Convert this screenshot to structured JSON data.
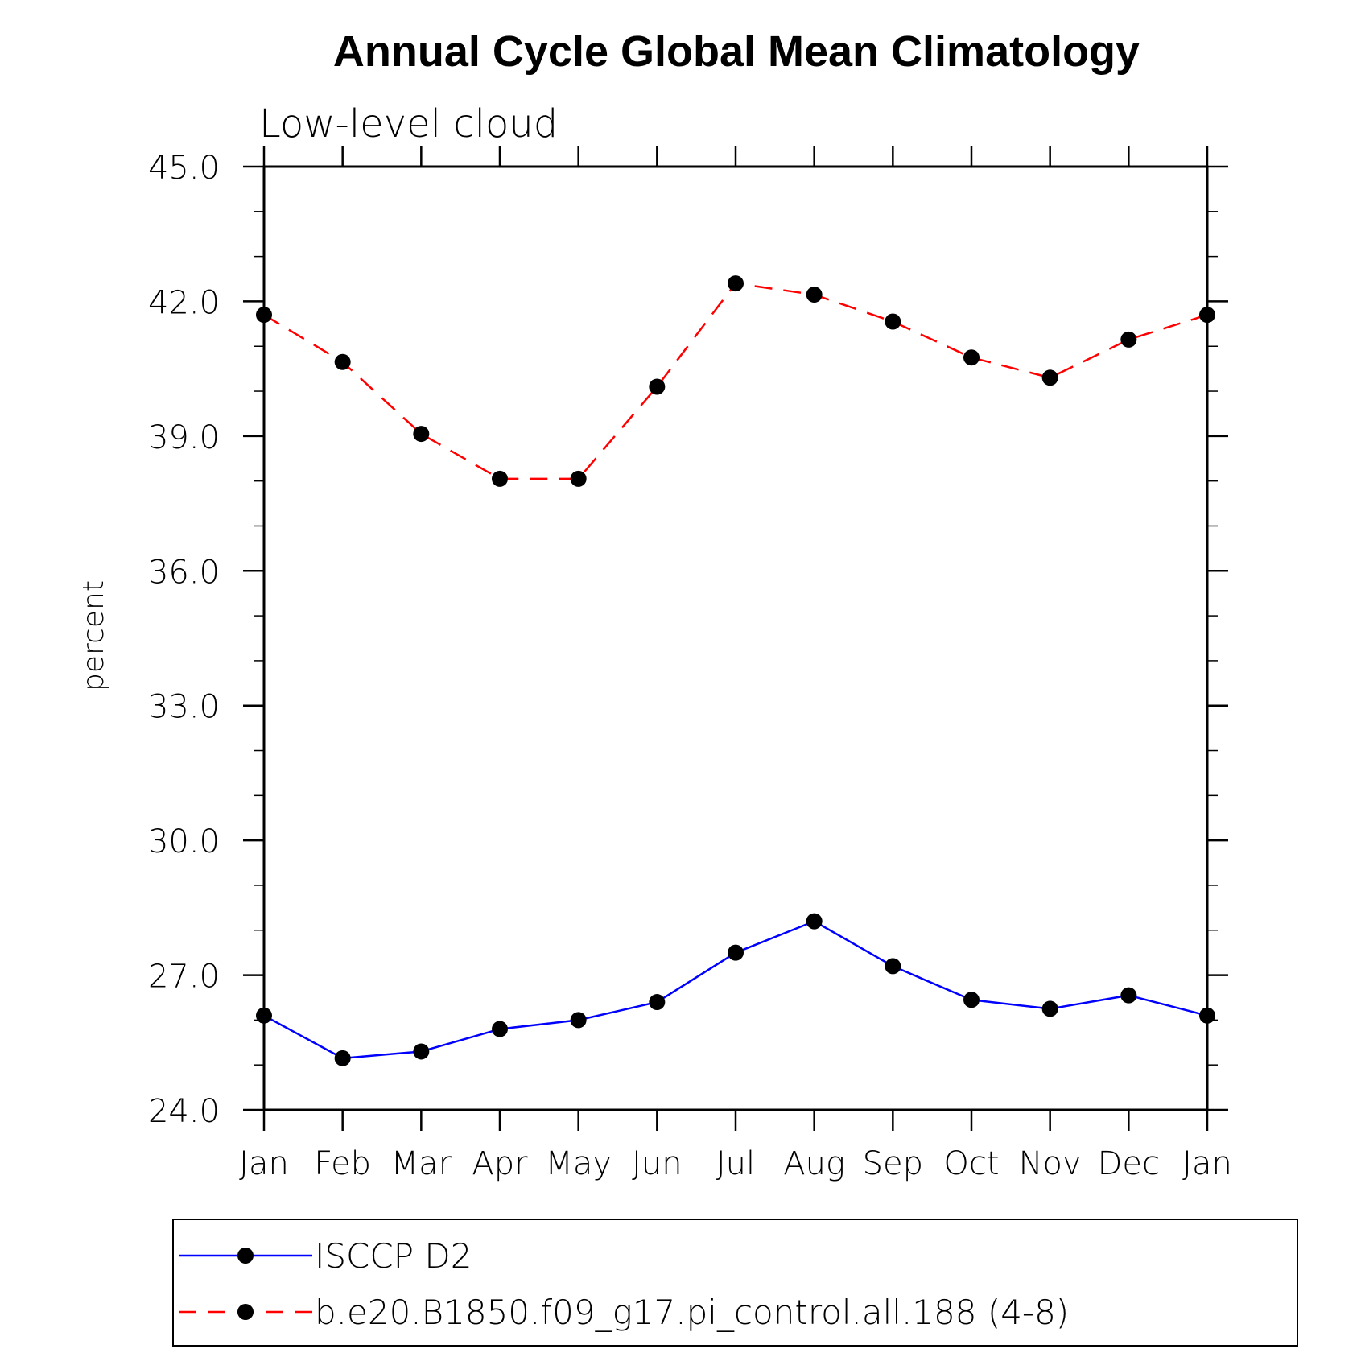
{
  "chart_data": {
    "type": "line",
    "title": "Annual Cycle Global Mean Climatology",
    "subtitle": "Low-level cloud",
    "ylabel": "percent",
    "xlabel": "",
    "categories": [
      "Jan",
      "Feb",
      "Mar",
      "Apr",
      "May",
      "Jun",
      "Jul",
      "Aug",
      "Sep",
      "Oct",
      "Nov",
      "Dec",
      "Jan"
    ],
    "ylim": [
      24.0,
      45.0
    ],
    "yticks": [
      "24.0",
      "27.0",
      "30.0",
      "33.0",
      "36.0",
      "39.0",
      "42.0",
      "45.0"
    ],
    "ytick_values": [
      24,
      27,
      30,
      33,
      36,
      39,
      42,
      45
    ],
    "y_minor_step": 1.0,
    "grid": false,
    "legend_position": "bottom",
    "series": [
      {
        "name": "ISCCP D2",
        "color": "#0000ff",
        "dash": "solid",
        "marker": "filled-circle",
        "values": [
          26.1,
          25.15,
          25.3,
          25.8,
          26.0,
          26.4,
          27.5,
          28.2,
          27.2,
          26.45,
          26.25,
          26.55,
          26.1
        ]
      },
      {
        "name": "b.e20.B1850.f09_g17.pi_control.all.188 (4-8)",
        "color": "#ff0000",
        "dash": "dashed",
        "marker": "filled-circle",
        "values": [
          41.7,
          40.65,
          39.05,
          38.05,
          38.05,
          40.1,
          42.4,
          42.15,
          41.55,
          40.75,
          40.3,
          41.15,
          41.7
        ]
      }
    ]
  }
}
